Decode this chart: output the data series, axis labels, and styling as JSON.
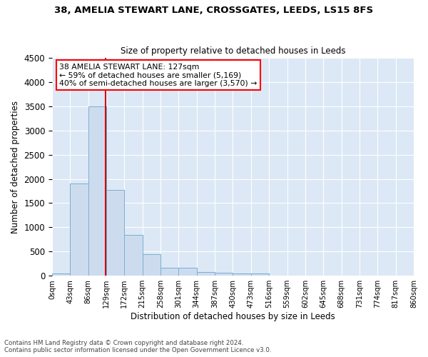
{
  "title1": "38, AMELIA STEWART LANE, CROSSGATES, LEEDS, LS15 8FS",
  "title2": "Size of property relative to detached houses in Leeds",
  "xlabel": "Distribution of detached houses by size in Leeds",
  "ylabel": "Number of detached properties",
  "bin_labels": [
    "0sqm",
    "43sqm",
    "86sqm",
    "129sqm",
    "172sqm",
    "215sqm",
    "258sqm",
    "301sqm",
    "344sqm",
    "387sqm",
    "430sqm",
    "473sqm",
    "516sqm",
    "559sqm",
    "602sqm",
    "645sqm",
    "688sqm",
    "731sqm",
    "774sqm",
    "817sqm",
    "860sqm"
  ],
  "bar_heights": [
    50,
    1900,
    3500,
    1780,
    840,
    450,
    170,
    160,
    80,
    55,
    45,
    50,
    0,
    0,
    0,
    0,
    0,
    0,
    0,
    0
  ],
  "bar_color": "#ccdcee",
  "bar_edge_color": "#7aafd4",
  "background_color": "#dce8f5",
  "grid_color": "#ffffff",
  "ylim": [
    0,
    4500
  ],
  "yticks": [
    0,
    500,
    1000,
    1500,
    2000,
    2500,
    3000,
    3500,
    4000,
    4500
  ],
  "annotation_line1": "38 AMELIA STEWART LANE: 127sqm",
  "annotation_line2": "← 59% of detached houses are smaller (5,169)",
  "annotation_line3": "40% of semi-detached houses are larger (3,570) →",
  "footer_line1": "Contains HM Land Registry data © Crown copyright and database right 2024.",
  "footer_line2": "Contains public sector information licensed under the Open Government Licence v3.0.",
  "bin_width": 43,
  "n_bars": 20
}
